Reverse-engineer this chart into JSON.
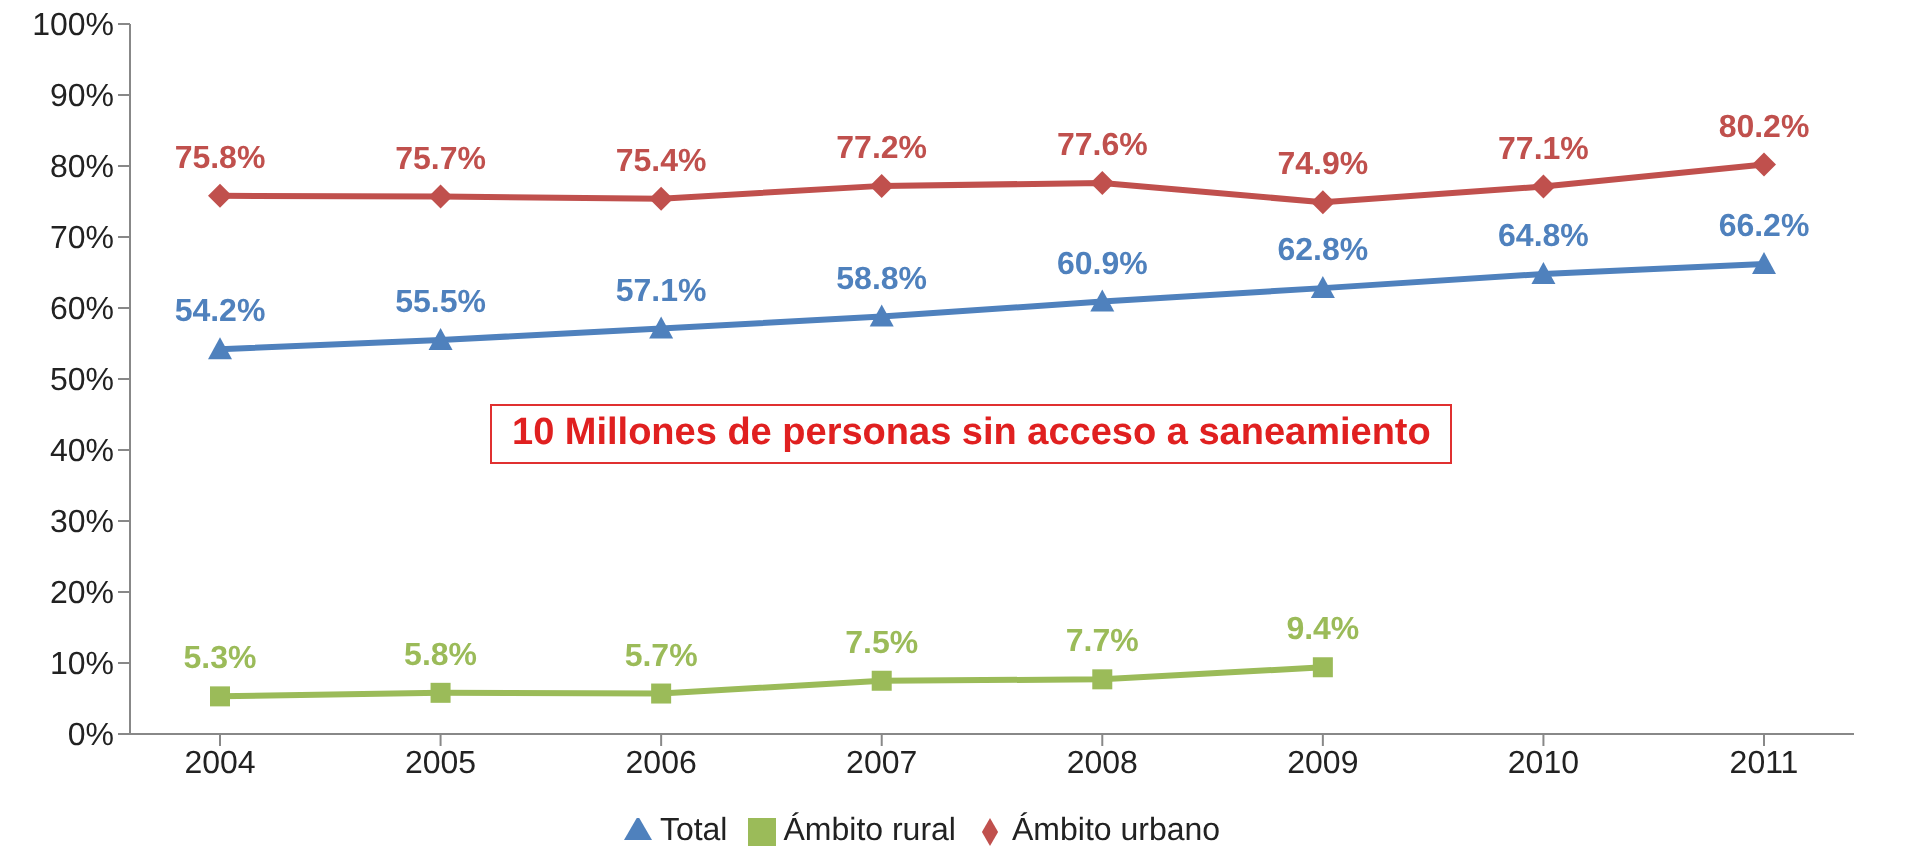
{
  "chart_data": {
    "type": "line",
    "categories": [
      "2004",
      "2005",
      "2006",
      "2007",
      "2008",
      "2009",
      "2010",
      "2011"
    ],
    "series": [
      {
        "name": "Ámbito urbano",
        "color": "#c0504d",
        "marker": "diamond",
        "values": [
          75.8,
          75.7,
          75.4,
          77.2,
          77.6,
          74.9,
          77.1,
          80.2
        ],
        "value_labels": [
          "75.8%",
          "75.7%",
          "75.4%",
          "77.2%",
          "77.6%",
          "74.9%",
          "77.1%",
          "80.2%"
        ]
      },
      {
        "name": "Ámbito rural",
        "color": "#9bbb59",
        "marker": "square",
        "values": [
          5.3,
          5.8,
          5.7,
          7.5,
          7.7,
          9.4,
          null,
          null
        ],
        "value_labels": [
          "5.3%",
          "5.8%",
          "5.7%",
          "7.5%",
          "7.7%",
          "9.4%",
          null,
          null
        ]
      },
      {
        "name": "Total",
        "color": "#4f81bd",
        "marker": "triangle",
        "values": [
          54.2,
          55.5,
          57.1,
          58.8,
          60.9,
          62.8,
          64.8,
          66.2
        ],
        "value_labels": [
          "54.2%",
          "55.5%",
          "57.1%",
          "58.8%",
          "60.9%",
          "62.8%",
          "64.8%",
          "66.2%"
        ]
      }
    ],
    "ylim": [
      0,
      100
    ],
    "yticks": [
      {
        "value": 0,
        "label": "0%"
      },
      {
        "value": 10,
        "label": "10%"
      },
      {
        "value": 20,
        "label": "20%"
      },
      {
        "value": 30,
        "label": "30%"
      },
      {
        "value": 40,
        "label": "40%"
      },
      {
        "value": 50,
        "label": "50%"
      },
      {
        "value": 60,
        "label": "60%"
      },
      {
        "value": 70,
        "label": "70%"
      },
      {
        "value": 80,
        "label": "80%"
      },
      {
        "value": 90,
        "label": "90%"
      },
      {
        "value": 100,
        "label": "100%"
      }
    ],
    "annotations": [
      "10 Millones de personas sin acceso a saneamiento"
    ],
    "legend": "bottom",
    "grid": false
  }
}
